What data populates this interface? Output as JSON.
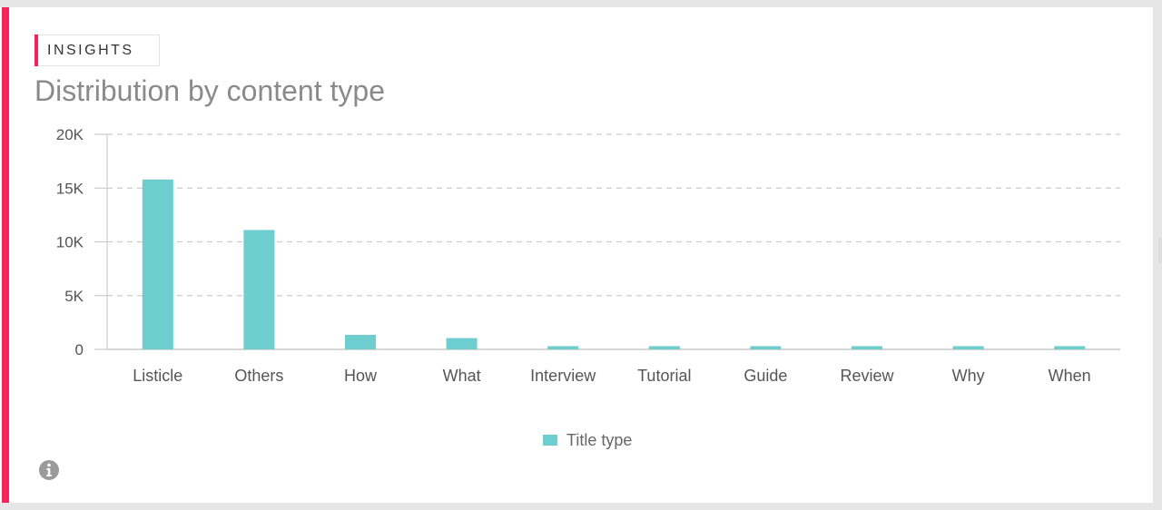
{
  "card": {
    "tag": "INSIGHTS",
    "title": "Distribution by content type"
  },
  "colors": {
    "accent": "#f4245c",
    "bar": "#6dcdcf",
    "grid": "#cccccc",
    "axis_text": "#555555",
    "icon": "#9a9a9a"
  },
  "icons": {
    "info": "info-icon",
    "next": "chevron-right-icon"
  },
  "chart_data": {
    "type": "bar",
    "categories": [
      "Listicle",
      "Others",
      "How",
      "What",
      "Interview",
      "Tutorial",
      "Guide",
      "Review",
      "Why",
      "When"
    ],
    "series": [
      {
        "name": "Title type",
        "values": [
          15800,
          11100,
          1350,
          1050,
          300,
          300,
          300,
          300,
          300,
          300
        ]
      }
    ],
    "title": "Distribution by content type",
    "xlabel": "",
    "ylabel": "",
    "ylim": [
      0,
      20000
    ],
    "yticks": [
      {
        "value": 0,
        "label": "0"
      },
      {
        "value": 5000,
        "label": "5K"
      },
      {
        "value": 10000,
        "label": "10K"
      },
      {
        "value": 15000,
        "label": "15K"
      },
      {
        "value": 20000,
        "label": "20K"
      }
    ],
    "grid": true,
    "legend_position": "bottom-center"
  }
}
